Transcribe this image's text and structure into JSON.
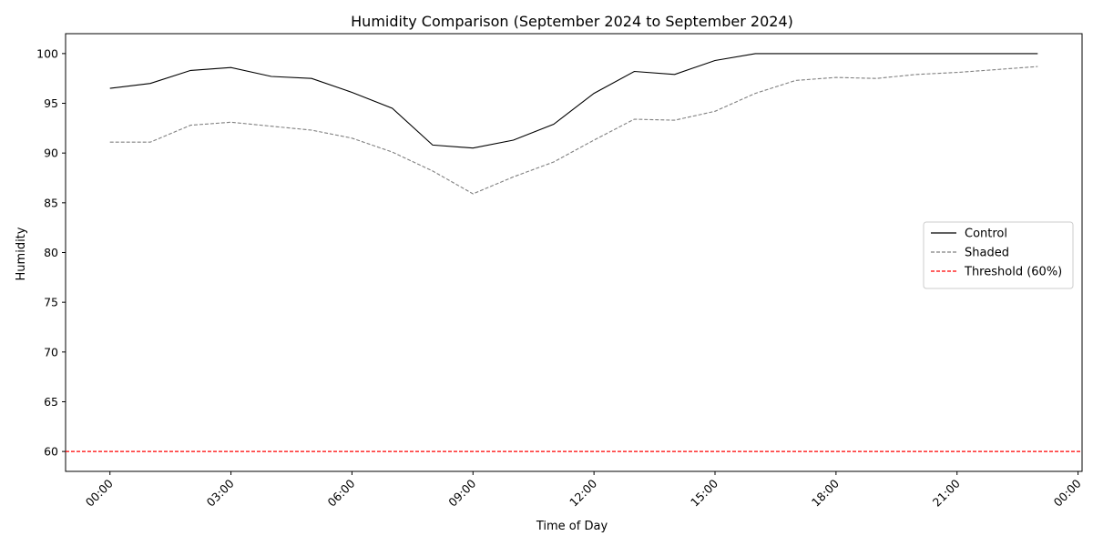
{
  "chart_data": {
    "type": "line",
    "title": "Humidity Comparison (September 2024 to September 2024)",
    "xlabel": "Time of Day",
    "ylabel": "Humidity",
    "x_tick_labels": [
      "00:00",
      "03:00",
      "06:00",
      "09:00",
      "12:00",
      "15:00",
      "18:00",
      "21:00",
      "00:00"
    ],
    "x_tick_hours": [
      0,
      3,
      6,
      9,
      12,
      15,
      18,
      21,
      24
    ],
    "xlim_hours": [
      -1.1,
      24.1
    ],
    "ylim": [
      58,
      102
    ],
    "y_ticks": [
      60,
      65,
      70,
      75,
      80,
      85,
      90,
      95,
      100
    ],
    "grid": false,
    "legend_position": "center-right",
    "x_hours": [
      0,
      1,
      2,
      3,
      4,
      5,
      6,
      7,
      8,
      9,
      10,
      11,
      12,
      13,
      14,
      15,
      16,
      17,
      18,
      19,
      20,
      21,
      22,
      23
    ],
    "series": [
      {
        "name": "Control",
        "color": "#000000",
        "style": "solid",
        "values": [
          96.5,
          97.0,
          98.3,
          98.6,
          97.7,
          97.5,
          96.1,
          94.5,
          90.8,
          90.5,
          91.3,
          92.9,
          96.0,
          98.2,
          97.9,
          99.3,
          100.0,
          100.0,
          100.0,
          100.0,
          100.0,
          100.0,
          100.0,
          100.0
        ]
      },
      {
        "name": "Shaded",
        "color": "#808080",
        "style": "dashed",
        "values": [
          91.1,
          91.1,
          92.8,
          93.1,
          92.7,
          92.3,
          91.5,
          90.1,
          88.2,
          85.9,
          87.6,
          89.1,
          91.3,
          93.4,
          93.3,
          94.2,
          96.0,
          97.3,
          97.6,
          97.5,
          97.9,
          98.1,
          98.4,
          98.7
        ]
      }
    ],
    "reference_lines": [
      {
        "name": "Threshold (60%)",
        "value": 60,
        "color": "#ff0000",
        "style": "dashed"
      }
    ]
  }
}
